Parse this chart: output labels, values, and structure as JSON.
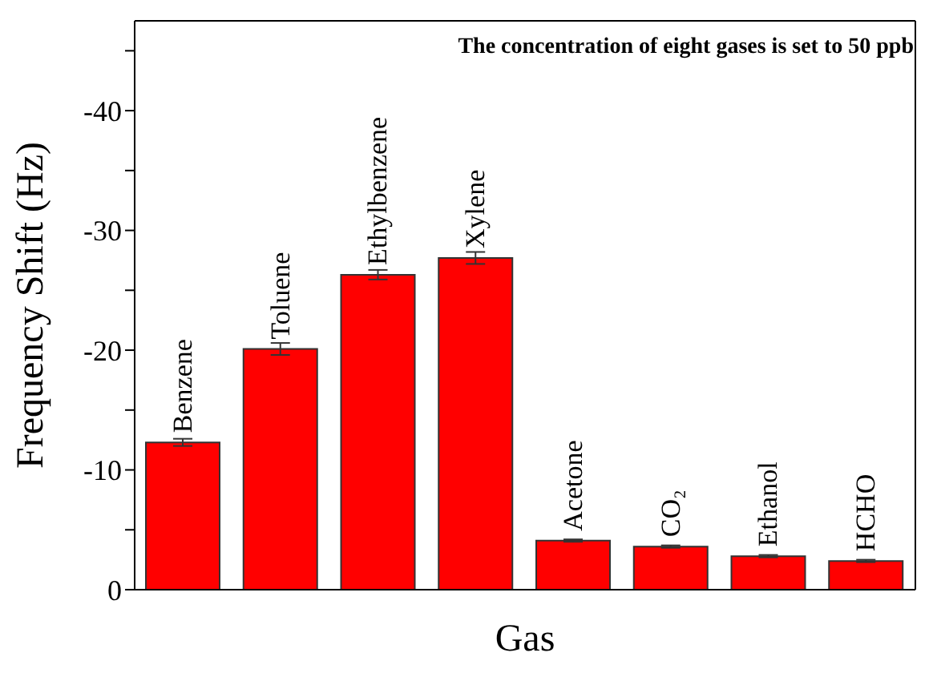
{
  "chart_data": {
    "type": "bar",
    "categories": [
      "Benzene",
      "Toluene",
      "Ethylbenzene",
      "Xylene",
      "Acetone",
      "CO₂",
      "Ethanol",
      "HCHO"
    ],
    "values": [
      -12.3,
      -20.1,
      -26.3,
      -27.7,
      -4.1,
      -3.6,
      -2.8,
      -2.4
    ],
    "errors": [
      0.3,
      0.5,
      0.4,
      0.5,
      0.1,
      0.1,
      0.1,
      0.1
    ],
    "color": "#ff0000",
    "xlabel": "Gas",
    "ylabel": "Frequency Shift (Hz)",
    "ylim": [
      0,
      -47.5
    ],
    "yticks": [
      0,
      {
        "value": -5,
        "label": null
      },
      -10,
      {
        "value": -15,
        "label": null
      },
      -20,
      {
        "value": -25,
        "label": null
      },
      -30,
      {
        "value": -35,
        "label": null
      },
      -40,
      {
        "value": -45,
        "label": null
      }
    ],
    "annotations": [
      "The concentration of eight gases is set to 50 ppb"
    ],
    "tick_labels": "y",
    "grid": false,
    "legend": false
  }
}
